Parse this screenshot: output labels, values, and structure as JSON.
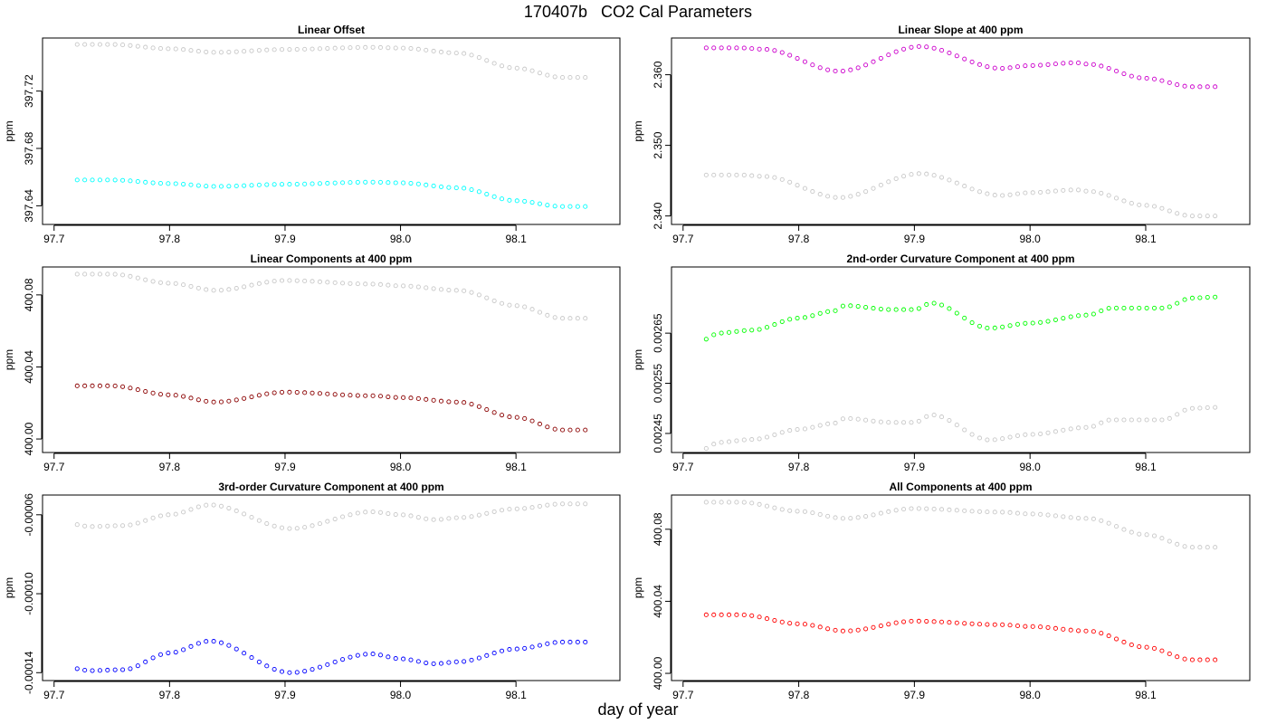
{
  "figure": {
    "title": "170407b   CO2 Cal Parameters",
    "xlabel": "day of year"
  },
  "colors": {
    "reference": "#c8c8c8",
    "axis": "#000000"
  },
  "chart_data": [
    {
      "type": "scatter",
      "title": "Linear Offset",
      "ylabel": "ppm",
      "xlim": [
        97.69,
        98.19
      ],
      "xticks": [
        97.7,
        97.8,
        97.9,
        98.0,
        98.1
      ],
      "xtick_labels": [
        "97.7",
        "97.8",
        "97.9",
        "98.0",
        "98.1"
      ],
      "ylim": [
        397.627,
        397.757
      ],
      "yticks": [
        397.64,
        397.68,
        397.72
      ],
      "ytick_labels": [
        "397.64",
        "397.68",
        "397.72"
      ],
      "x": {
        "start": 97.72,
        "end": 98.16,
        "count": 68
      },
      "series": [
        {
          "name": "reference",
          "color": "#c8c8c8",
          "anchors": [
            [
              97.72,
              397.7525
            ],
            [
              97.75,
              397.7525
            ],
            [
              97.8,
              397.7495
            ],
            [
              97.84,
              397.747
            ],
            [
              97.9,
              397.749
            ],
            [
              97.975,
              397.7505
            ],
            [
              98.0,
              397.75
            ],
            [
              98.05,
              397.7465
            ],
            [
              98.1,
              397.736
            ],
            [
              98.14,
              397.7295
            ],
            [
              98.16,
              397.7295
            ]
          ]
        },
        {
          "name": "Linear Offset",
          "color": "#00ffff",
          "anchors": [
            [
              97.72,
              397.658
            ],
            [
              97.75,
              397.658
            ],
            [
              97.8,
              397.6555
            ],
            [
              97.84,
              397.6535
            ],
            [
              97.9,
              397.655
            ],
            [
              97.975,
              397.6565
            ],
            [
              98.0,
              397.656
            ],
            [
              98.05,
              397.6525
            ],
            [
              98.1,
              397.6435
            ],
            [
              98.14,
              397.6395
            ],
            [
              98.16,
              397.6395
            ]
          ]
        }
      ]
    },
    {
      "type": "scatter",
      "title": "Linear Slope at 400 ppm",
      "ylabel": "ppm",
      "xlim": [
        97.69,
        98.19
      ],
      "xticks": [
        97.7,
        97.8,
        97.9,
        98.0,
        98.1
      ],
      "xtick_labels": [
        "97.7",
        "97.8",
        "97.9",
        "98.0",
        "98.1"
      ],
      "ylim": [
        2.3388,
        2.3652
      ],
      "yticks": [
        2.34,
        2.35,
        2.36
      ],
      "ytick_labels": [
        "2.340",
        "2.350",
        "2.360"
      ],
      "x": {
        "start": 97.72,
        "end": 98.16,
        "count": 68
      },
      "series": [
        {
          "name": "reference",
          "color": "#c8c8c8",
          "anchors": [
            [
              97.72,
              2.3458
            ],
            [
              97.75,
              2.3458
            ],
            [
              97.77,
              2.3456
            ],
            [
              97.835,
              2.3426
            ],
            [
              97.905,
              2.346
            ],
            [
              97.975,
              2.3429
            ],
            [
              98.0,
              2.3433
            ],
            [
              98.04,
              2.3437
            ],
            [
              98.05,
              2.3435
            ],
            [
              98.1,
              2.3415
            ],
            [
              98.14,
              2.34
            ],
            [
              98.16,
              2.34
            ]
          ]
        },
        {
          "name": "Linear Slope at 400 ppm",
          "color": "#cc00cc",
          "anchors": [
            [
              97.72,
              2.3638
            ],
            [
              97.75,
              2.3638
            ],
            [
              97.77,
              2.3636
            ],
            [
              97.835,
              2.3605
            ],
            [
              97.905,
              2.364
            ],
            [
              97.975,
              2.3609
            ],
            [
              98.0,
              2.3613
            ],
            [
              98.04,
              2.3617
            ],
            [
              98.05,
              2.3615
            ],
            [
              98.1,
              2.3595
            ],
            [
              98.14,
              2.3583
            ],
            [
              98.16,
              2.3583
            ]
          ]
        }
      ]
    },
    {
      "type": "scatter",
      "title": "Linear Components at 400 ppm",
      "ylabel": "ppm",
      "xlim": [
        97.69,
        98.19
      ],
      "xticks": [
        97.7,
        97.8,
        97.9,
        98.0,
        98.1
      ],
      "xtick_labels": [
        "97.7",
        "97.8",
        "97.9",
        "98.0",
        "98.1"
      ],
      "ylim": [
        399.9925,
        400.0955
      ],
      "yticks": [
        400.0,
        400.04,
        400.08
      ],
      "ytick_labels": [
        "400.00",
        "400.04",
        "400.08"
      ],
      "x": {
        "start": 97.72,
        "end": 98.16,
        "count": 68
      },
      "series": [
        {
          "name": "reference",
          "color": "#c8c8c8",
          "anchors": [
            [
              97.72,
              400.0915
            ],
            [
              97.75,
              400.0915
            ],
            [
              97.8,
              400.0865
            ],
            [
              97.84,
              400.0825
            ],
            [
              97.9,
              400.088
            ],
            [
              97.975,
              400.086
            ],
            [
              98.0,
              400.085
            ],
            [
              98.05,
              400.0825
            ],
            [
              98.1,
              400.074
            ],
            [
              98.14,
              400.067
            ],
            [
              98.16,
              400.067
            ]
          ]
        },
        {
          "name": "Linear Components at 400 ppm",
          "color": "#8b0000",
          "anchors": [
            [
              97.72,
              400.0295
            ],
            [
              97.75,
              400.0295
            ],
            [
              97.8,
              400.0245
            ],
            [
              97.84,
              400.0205
            ],
            [
              97.9,
              400.026
            ],
            [
              97.975,
              400.024
            ],
            [
              98.0,
              400.023
            ],
            [
              98.05,
              400.0205
            ],
            [
              98.1,
              400.012
            ],
            [
              98.14,
              400.005
            ],
            [
              98.16,
              400.005
            ]
          ]
        }
      ]
    },
    {
      "type": "scatter",
      "title": "2nd-order Curvature Component at 400 ppm",
      "ylabel": "ppm",
      "xlim": [
        97.69,
        98.19
      ],
      "xticks": [
        97.7,
        97.8,
        97.9,
        98.0,
        98.1
      ],
      "xtick_labels": [
        "97.7",
        "97.8",
        "97.9",
        "98.0",
        "98.1"
      ],
      "ylim": [
        0.002412,
        0.002782
      ],
      "yticks": [
        0.00245,
        0.00255,
        0.00265
      ],
      "ytick_labels": [
        "0.00245",
        "0.00255",
        "0.00265"
      ],
      "x": {
        "start": 97.72,
        "end": 98.16,
        "count": 68
      },
      "series": [
        {
          "name": "reference",
          "color": "#c8c8c8",
          "anchors": [
            [
              97.72,
              0.00242
            ],
            [
              97.73,
              0.002432
            ],
            [
              97.76,
              0.002438
            ],
            [
              97.8,
              0.002458
            ],
            [
              97.83,
              0.00247
            ],
            [
              97.84,
              0.00248
            ],
            [
              97.88,
              0.002472
            ],
            [
              97.9,
              0.002472
            ],
            [
              97.915,
              0.002487
            ],
            [
              97.965,
              0.002437
            ],
            [
              98.0,
              0.002448
            ],
            [
              98.05,
              0.002462
            ],
            [
              98.07,
              0.002477
            ],
            [
              98.115,
              0.002477
            ],
            [
              98.14,
              0.0025
            ],
            [
              98.16,
              0.002502
            ]
          ]
        },
        {
          "name": "2nd-order Curvature Component at 400 ppm",
          "color": "#00ff00",
          "anchors": [
            [
              97.72,
              0.002638
            ],
            [
              97.73,
              0.00265
            ],
            [
              97.76,
              0.002656
            ],
            [
              97.8,
              0.00268
            ],
            [
              97.83,
              0.002694
            ],
            [
              97.84,
              0.002705
            ],
            [
              97.88,
              0.002697
            ],
            [
              97.9,
              0.002697
            ],
            [
              97.915,
              0.00271
            ],
            [
              97.965,
              0.00266
            ],
            [
              98.0,
              0.00267
            ],
            [
              98.05,
              0.002686
            ],
            [
              98.07,
              0.0027
            ],
            [
              98.115,
              0.0027
            ],
            [
              98.14,
              0.00272
            ],
            [
              98.16,
              0.002722
            ]
          ]
        }
      ]
    },
    {
      "type": "scatter",
      "title": "3rd-order Curvature Component at 400 ppm",
      "ylabel": "ppm",
      "xlim": [
        97.69,
        98.19
      ],
      "xticks": [
        97.7,
        97.8,
        97.9,
        98.0,
        98.1
      ],
      "xtick_labels": [
        "97.7",
        "97.8",
        "97.9",
        "98.0",
        "98.1"
      ],
      "ylim": [
        -0.000144,
        -5e-05
      ],
      "yticks": [
        -0.00014,
        -0.0001,
        -6e-05
      ],
      "ytick_labels": [
        "-0.00014",
        "-0.00010",
        "-0.00006"
      ],
      "x": {
        "start": 97.72,
        "end": 98.16,
        "count": 68
      },
      "series": [
        {
          "name": "reference",
          "color": "#c8c8c8",
          "anchors": [
            [
              97.72,
              -6.5e-05
            ],
            [
              97.73,
              -6.6e-05
            ],
            [
              97.76,
              -6.55e-05
            ],
            [
              97.8,
              -6e-05
            ],
            [
              97.835,
              -5.5e-05
            ],
            [
              97.905,
              -6.7e-05
            ],
            [
              97.975,
              -5.85e-05
            ],
            [
              98.0,
              -6e-05
            ],
            [
              98.03,
              -6.25e-05
            ],
            [
              98.05,
              -6.15e-05
            ],
            [
              98.1,
              -5.7e-05
            ],
            [
              98.14,
              -5.45e-05
            ],
            [
              98.16,
              -5.45e-05
            ]
          ]
        },
        {
          "name": "3rd-order Curvature Component at 400 ppm",
          "color": "#0000ff",
          "anchors": [
            [
              97.72,
              -0.000138
            ],
            [
              97.73,
              -0.000139
            ],
            [
              97.76,
              -0.0001385
            ],
            [
              97.8,
              -0.00013
            ],
            [
              97.835,
              -0.000124
            ],
            [
              97.905,
              -0.00014
            ],
            [
              97.975,
              -0.0001305
            ],
            [
              98.0,
              -0.000133
            ],
            [
              98.03,
              -0.0001355
            ],
            [
              98.05,
              -0.0001345
            ],
            [
              98.1,
              -0.000128
            ],
            [
              98.14,
              -0.0001245
            ],
            [
              98.16,
              -0.0001245
            ]
          ]
        }
      ]
    },
    {
      "type": "scatter",
      "title": "All Components at 400 ppm",
      "ylabel": "ppm",
      "xlim": [
        97.69,
        98.19
      ],
      "xticks": [
        97.7,
        97.8,
        97.9,
        98.0,
        98.1
      ],
      "xtick_labels": [
        "97.7",
        "97.8",
        "97.9",
        "98.0",
        "98.1"
      ],
      "ylim": [
        399.996,
        400.099
      ],
      "yticks": [
        400.0,
        400.04,
        400.08
      ],
      "ytick_labels": [
        "400.00",
        "400.04",
        "400.08"
      ],
      "x": {
        "start": 97.72,
        "end": 98.16,
        "count": 68
      },
      "series": [
        {
          "name": "reference",
          "color": "#c8c8c8",
          "anchors": [
            [
              97.72,
              400.095
            ],
            [
              97.75,
              400.095
            ],
            [
              97.8,
              400.09
            ],
            [
              97.84,
              400.086
            ],
            [
              97.9,
              400.0915
            ],
            [
              97.975,
              400.0895
            ],
            [
              98.0,
              400.0885
            ],
            [
              98.05,
              400.086
            ],
            [
              98.1,
              400.077
            ],
            [
              98.14,
              400.07
            ],
            [
              98.16,
              400.07
            ]
          ]
        },
        {
          "name": "All Components at 400 ppm",
          "color": "#ff0000",
          "anchors": [
            [
              97.72,
              400.0325
            ],
            [
              97.75,
              400.0325
            ],
            [
              97.8,
              400.0275
            ],
            [
              97.84,
              400.0235
            ],
            [
              97.9,
              400.029
            ],
            [
              97.975,
              400.027
            ],
            [
              98.0,
              400.026
            ],
            [
              98.05,
              400.0235
            ],
            [
              98.1,
              400.0145
            ],
            [
              98.14,
              400.0075
            ],
            [
              98.16,
              400.0075
            ]
          ]
        }
      ]
    }
  ]
}
